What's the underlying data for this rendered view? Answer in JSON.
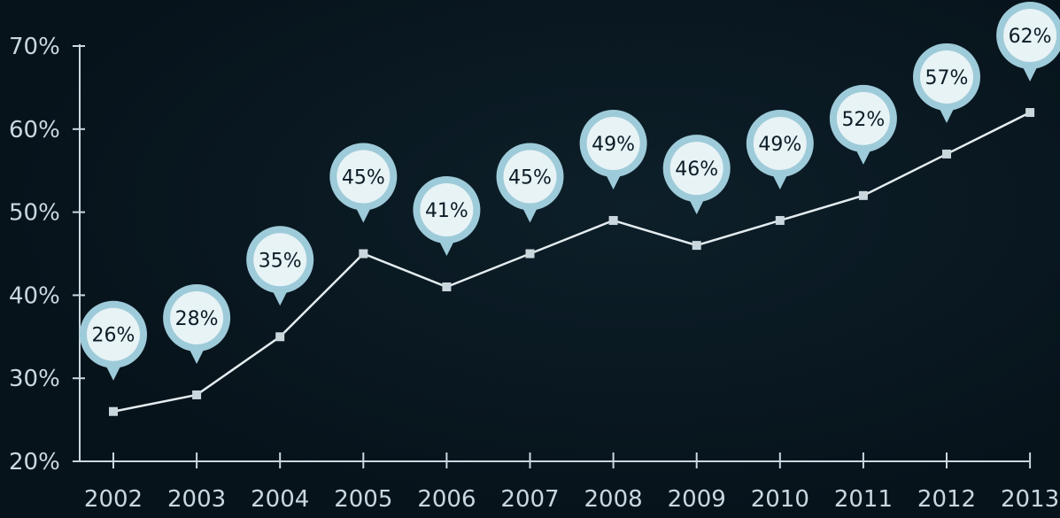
{
  "chart_data": {
    "type": "line",
    "categories": [
      "2002",
      "2003",
      "2004",
      "2005",
      "2006",
      "2007",
      "2008",
      "2009",
      "2010",
      "2011",
      "2012",
      "2013"
    ],
    "values": [
      26,
      28,
      35,
      45,
      41,
      45,
      49,
      46,
      49,
      52,
      57,
      62
    ],
    "data_labels": [
      "26%",
      "28%",
      "35%",
      "45%",
      "41%",
      "45%",
      "49%",
      "46%",
      "49%",
      "52%",
      "57%",
      "62%"
    ],
    "y_ticks": [
      20,
      30,
      40,
      50,
      60,
      70
    ],
    "y_tick_labels": [
      "20%",
      "30%",
      "40%",
      "50%",
      "60%",
      "70%"
    ],
    "ylim": [
      20,
      70
    ],
    "title": "",
    "xlabel": "",
    "ylabel": "",
    "grid": false,
    "colors": {
      "background": "#07131b",
      "axis": "#c9d8e0",
      "line": "#e4ecef",
      "marker": "#c9d6dc",
      "bubble": "#9ecbd9",
      "bubble_text": "#0b1c26"
    }
  }
}
